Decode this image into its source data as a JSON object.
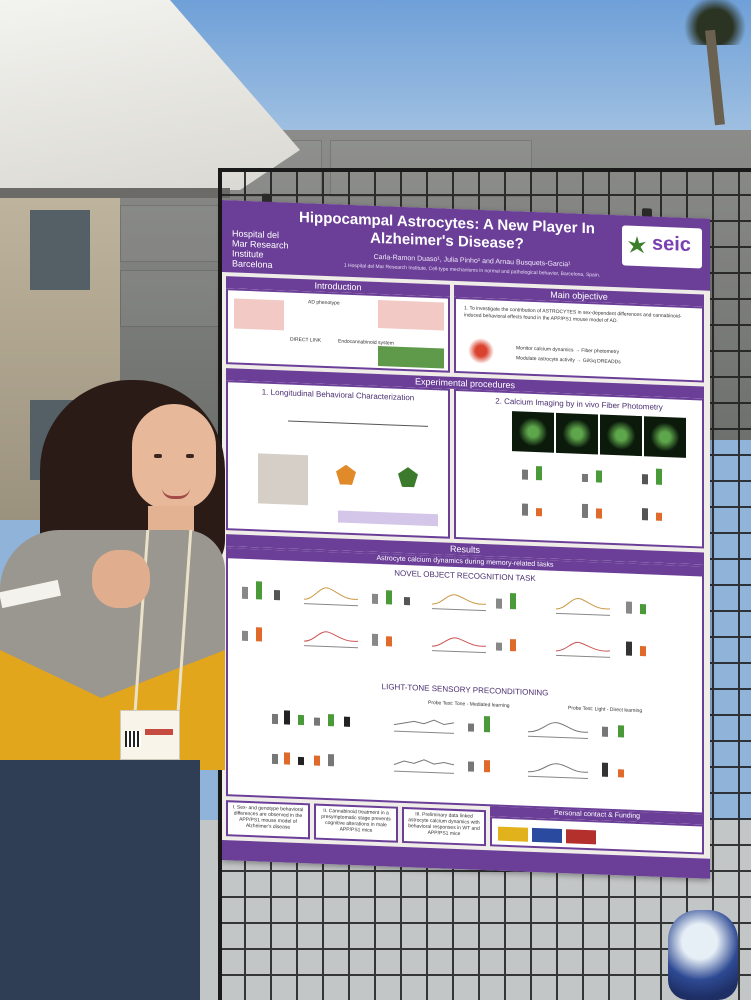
{
  "poster": {
    "title": "Hippocampal Astrocytes: A New Player In Alzheimer's Disease?",
    "authors": "Carla-Ramon Duaso¹, Julia Pinho¹ and Arnau Busquets-Garcia¹",
    "affiliation": "1 Hospital del Mar Research Institute, Cell-type mechanisms in normal and pathological behavior, Barcelona, Spain.",
    "logo_left": "Hospital del Mar Research Institute Barcelona",
    "logo_right": "seic",
    "sections": {
      "introduction": "Introduction",
      "main_objective": "Main objective",
      "objective_text": "1. To investigate the contribution of ASTROCYTES in sex-dependent differences and cannabinoid-induced behavioral effects found in the APP/PS1 mouse model of AD.",
      "objective_bullets": [
        "Monitor calcium dynamics → Fiber photometry",
        "Modulate astrocyte activity → Gi/Gq DREADDs"
      ],
      "intro_labels": [
        "AD phenotype",
        "Endocannabinoid system",
        "DIRECT LINK"
      ],
      "experimental": "Experimental procedures",
      "behavioral": "1. Longitudinal Behavioral Characterization",
      "calcium": "2. Calcium Imaging by in vivo Fiber Photometry",
      "results": "Results",
      "results_sub": "Astrocyte calcium dynamics during memory-related tasks",
      "nor": "NOVEL OBJECT RECOGNITION TASK",
      "ltsp": "LIGHT-TONE SENSORY PRECONDITIONING",
      "probe_tone": "Probe Test: Tone - Mediated learning",
      "probe_light": "Probe Test: Light - Direct learning",
      "conclusions": [
        "I. Sex- and genotype behavioral differences are observed in the APP/PS1 mouse model of Alzheimer's disease",
        "II. Cannabinoid treatment in a presymptomatic stage prevents cognitive alterations in male APP/PS1 mice",
        "III. Preliminary data linked astrocyte calcium dynamics with behavioral responses in WT and APP/PS1 mice"
      ],
      "contact": "Personal contact & Funding"
    }
  },
  "badge": {
    "name": "",
    "colors": {
      "accent": "#6b3f98",
      "sweater": "#e2a61d"
    }
  }
}
